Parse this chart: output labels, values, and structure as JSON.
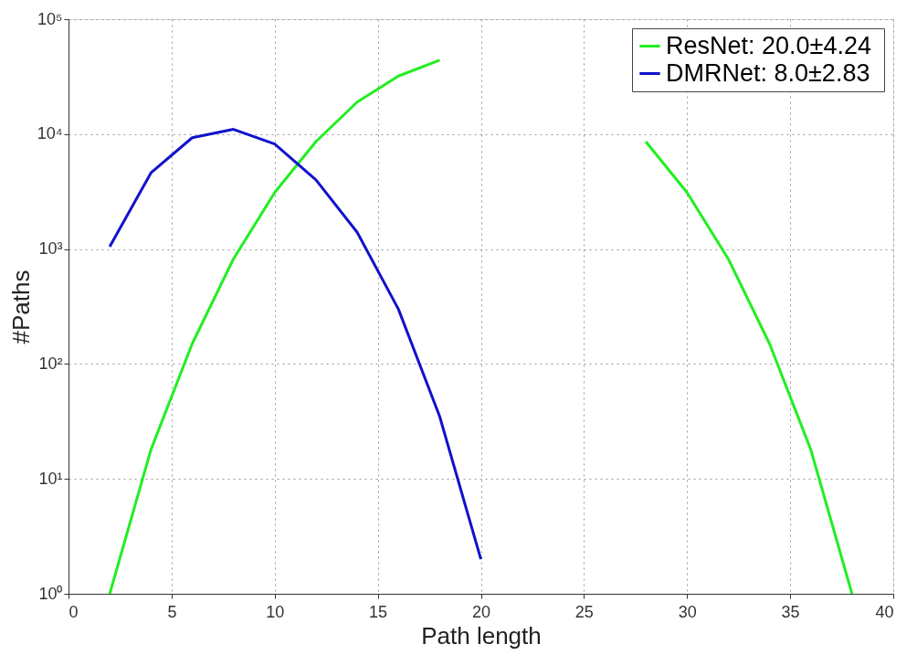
{
  "chart_data": {
    "type": "line",
    "xlabel": "Path length",
    "ylabel": "#Paths",
    "xlim": [
      0,
      40
    ],
    "xticks": [
      0,
      5,
      10,
      15,
      20,
      25,
      30,
      35,
      40
    ],
    "ylim": [
      1,
      100000
    ],
    "yticks": [
      {
        "value": 1,
        "label": "10⁰"
      },
      {
        "value": 10,
        "label": "10¹"
      },
      {
        "value": 100,
        "label": "10²"
      },
      {
        "value": 1000,
        "label": "10³"
      },
      {
        "value": 10000,
        "label": "10⁴"
      },
      {
        "value": 100000,
        "label": "10⁵"
      }
    ],
    "log": "y",
    "grid": true,
    "legend": "top right",
    "line_style": "solid",
    "x": [
      2,
      4,
      6,
      8,
      10,
      12,
      14,
      16,
      18,
      20,
      22,
      24,
      26,
      28,
      30,
      32,
      34,
      36,
      38
    ],
    "series": [
      {
        "name": "ResNet:  20.0±4.24",
        "color": "#22ee22",
        "values": [
          1,
          18,
          150,
          820,
          3100,
          8600,
          19000,
          32000,
          44000,
          null,
          null,
          null,
          null,
          8600,
          3100,
          820,
          150,
          18,
          1
        ]
      },
      {
        "name": "DMRNet: 8.0±2.83",
        "color": "#1111cc",
        "x": [
          2,
          4,
          6,
          8,
          10,
          12,
          14,
          16,
          18,
          20
        ],
        "values": [
          1050,
          4600,
          9300,
          11000,
          8200,
          4000,
          1400,
          300,
          35,
          2
        ]
      }
    ]
  }
}
